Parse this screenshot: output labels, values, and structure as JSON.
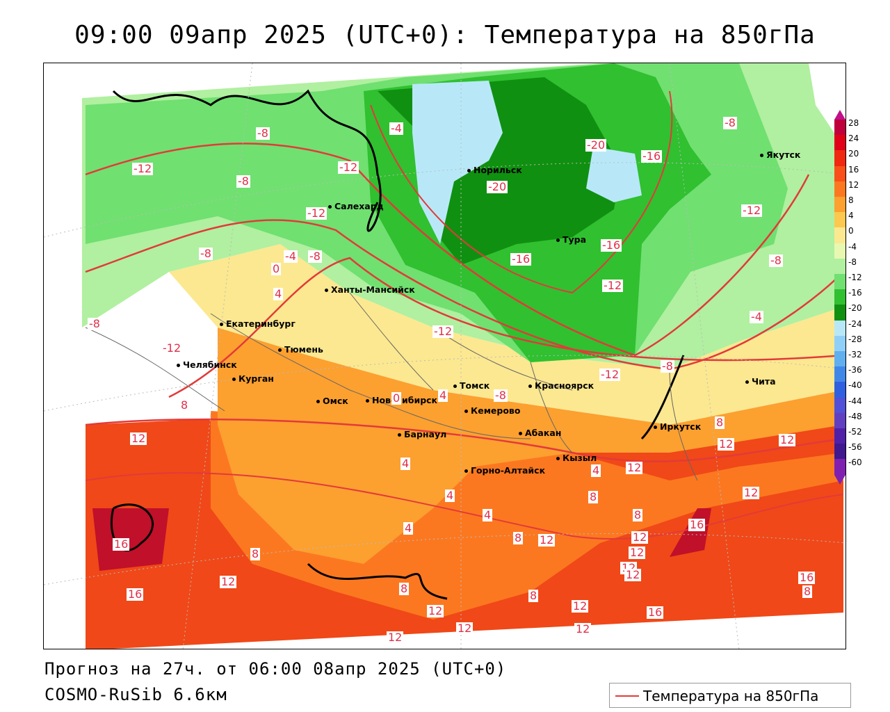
{
  "title": "09:00 09апр 2025 (UTC+0): Температура на 850гПа",
  "footer": {
    "forecast": "Прогноз на 27ч. от 06:00 08апр 2025 (UTC+0)",
    "model": "COSMO-RuSib 6.6км"
  },
  "legend": {
    "label": "Температура на 850гПа",
    "line_color": "#e23a3a"
  },
  "color_scale": {
    "labels": [
      "28",
      "24",
      "20",
      "16",
      "12",
      "8",
      "4",
      "0",
      "-4",
      "-8",
      "-12",
      "-16",
      "-20",
      "-24",
      "-28",
      "-32",
      "-36",
      "-40",
      "-44",
      "-48",
      "-52",
      "-56",
      "-60"
    ],
    "colors": [
      "#c0003a",
      "#e00018",
      "#f02810",
      "#f85018",
      "#fc7820",
      "#fca030",
      "#fcc850",
      "#fce890",
      "#e8f8b0",
      "#b0f0a0",
      "#70e070",
      "#30c030",
      "#109010",
      "#b8e8f8",
      "#90d0f8",
      "#60b0f0",
      "#4088e8",
      "#3060e0",
      "#5050d8",
      "#6040c0",
      "#5020a8",
      "#401890",
      "#8020b0"
    ]
  },
  "cities": [
    {
      "name": "Норильск"
    },
    {
      "name": "Якутск"
    },
    {
      "name": "Салехард"
    },
    {
      "name": "Тура"
    },
    {
      "name": "Ханты-Мансийск"
    },
    {
      "name": "Екатеринбург"
    },
    {
      "name": "Тюмень"
    },
    {
      "name": "Челябинск"
    },
    {
      "name": "Курган"
    },
    {
      "name": "Омск"
    },
    {
      "name": "Новосибирск"
    },
    {
      "name": "Томск"
    },
    {
      "name": "Кемерово"
    },
    {
      "name": "Красноярск"
    },
    {
      "name": "Абакан"
    },
    {
      "name": "Иркутск"
    },
    {
      "name": "Чита"
    },
    {
      "name": "Барнаул"
    },
    {
      "name": "Горно-Алтайск"
    },
    {
      "name": "Кызыл"
    }
  ],
  "contour_labels": [
    "-8",
    "-12",
    "-8",
    "-12",
    "-8",
    "-12",
    "-4",
    "-8",
    "0",
    "4",
    "-8",
    "-4",
    "-20",
    "-16",
    "-16",
    "-16",
    "-12",
    "-12",
    "-8",
    "-12",
    "-12",
    "-8",
    "-12",
    "-8",
    "-20",
    "-4",
    "-8",
    "8",
    "12",
    "0",
    "4",
    "4",
    "4",
    "4",
    "4",
    "8",
    "8",
    "12",
    "16",
    "16",
    "12",
    "8",
    "8",
    "12",
    "12",
    "12",
    "12",
    "8",
    "12",
    "12",
    "16",
    "12",
    "16",
    "12",
    "12",
    "8",
    "12",
    "4",
    "8",
    "12",
    "8",
    "12",
    "12",
    "16"
  ]
}
